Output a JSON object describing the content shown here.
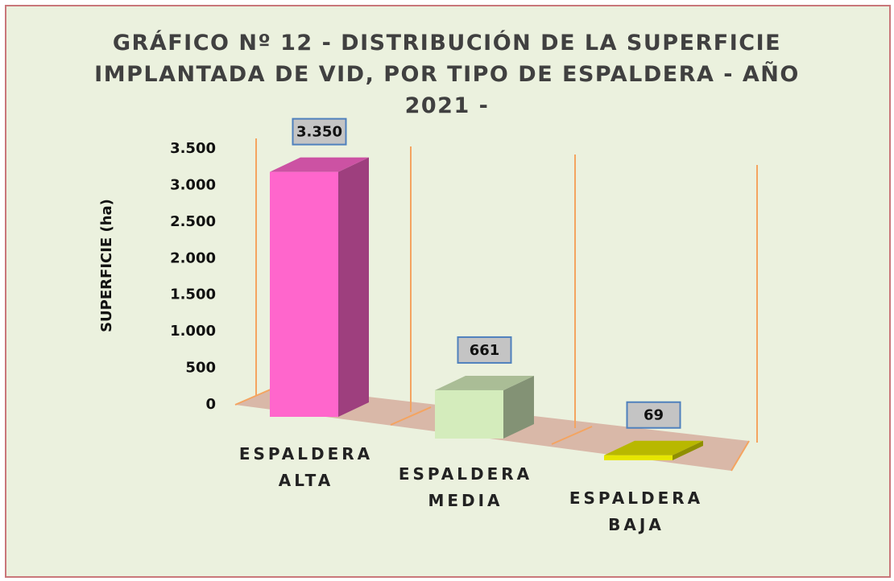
{
  "chart_data": {
    "type": "bar3d",
    "title": "GRÁFICO Nº 12 - DISTRIBUCIÓN DE LA SUPERFICIE IMPLANTADA DE VID, POR TIPO DE ESPALDERA - AÑO 2021 -",
    "y_label": "SUPERFICIE (ha)",
    "categories": [
      "ESPALDERA ALTA",
      "ESPALDERA MEDIA",
      "ESPALDERA BAJA"
    ],
    "values": [
      3350,
      661,
      69
    ],
    "value_labels": [
      "3.350",
      "661",
      "69"
    ],
    "colors": [
      "#ff66cc",
      "#d4ecbc",
      "#e6e600"
    ],
    "ylim": [
      0,
      3500
    ],
    "yticks": [
      0,
      500,
      {
        "value": 1000,
        "label": "1.000"
      },
      {
        "value": 1500,
        "label": "1.500"
      },
      {
        "value": 2000,
        "label": "2.000"
      },
      {
        "value": 2500,
        "label": "2.500"
      },
      {
        "value": 3000,
        "label": "3.000"
      },
      {
        "value": 3500,
        "label": "3.500"
      }
    ]
  }
}
